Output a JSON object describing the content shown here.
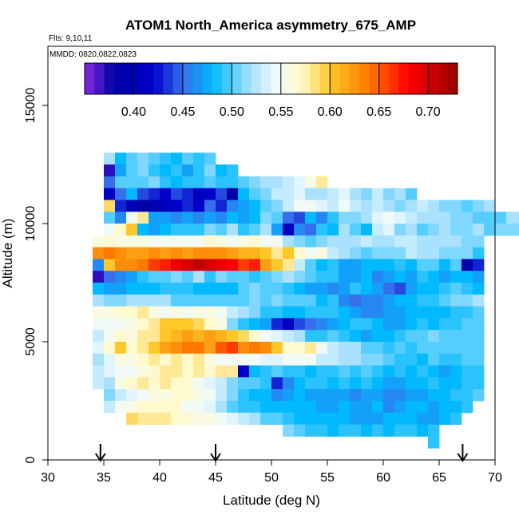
{
  "chart_data": {
    "type": "heatmap",
    "title": "ATOM1 North_America asymmetry_675_AMP",
    "flights_label": "Flts: 9,10,11",
    "dates_label": "MMDD: 0820,0822,0823",
    "xlabel": "Latitude (deg N)",
    "ylabel": "Altitude (m)",
    "xlim": [
      30,
      70
    ],
    "ylim": [
      0,
      17500
    ],
    "x_ticks": [
      30,
      35,
      40,
      45,
      50,
      55,
      60,
      65,
      70
    ],
    "y_ticks": [
      0,
      5000,
      10000,
      15000
    ],
    "colorbar": {
      "range": [
        0.35,
        0.73
      ],
      "ticks": [
        0.4,
        0.45,
        0.5,
        0.55,
        0.6,
        0.65,
        0.7
      ],
      "tick_labels": [
        "0.40",
        "0.45",
        "0.50",
        "0.55",
        "0.60",
        "0.65",
        "0.70"
      ]
    },
    "flight_arrows_lat": [
      34.7,
      45.0,
      67.1
    ],
    "cell_width_deg": 1.0,
    "cell_height_m": 500,
    "rows": [
      {
        "alt": 12500,
        "lat_start": 35,
        "values": [
          0.52,
          0.48,
          0.5,
          0.51,
          0.5,
          0.49,
          0.48,
          0.5,
          0.49,
          0.5
        ]
      },
      {
        "alt": 12000,
        "lat_start": 35,
        "values": [
          0.37,
          0.47,
          0.5,
          0.51,
          0.49,
          0.48,
          0.49,
          0.47,
          0.49,
          0.51,
          0.48,
          0.49
        ]
      },
      {
        "alt": 11500,
        "lat_start": 35,
        "values": [
          0.45,
          0.5,
          0.5,
          0.5,
          0.51,
          0.49,
          0.48,
          0.49,
          0.49,
          0.5,
          0.49,
          0.49,
          0.5,
          0.51,
          0.52,
          0.52,
          0.53,
          0.54,
          0.56,
          0.58
        ]
      },
      {
        "alt": 11000,
        "lat_start": 35,
        "values": [
          0.42,
          0.45,
          0.48,
          0.44,
          0.43,
          0.42,
          0.44,
          0.43,
          0.41,
          0.42,
          0.44,
          0.38,
          0.48,
          0.5,
          0.51,
          0.53,
          0.53,
          0.54,
          0.52,
          0.52,
          0.53,
          0.54,
          0.52,
          0.51,
          0.53,
          0.51,
          0.52,
          0.5
        ]
      },
      {
        "alt": 10500,
        "lat_start": 35,
        "values": [
          0.59,
          0.43,
          0.4,
          0.38,
          0.39,
          0.41,
          0.42,
          0.43,
          0.42,
          0.45,
          0.43,
          0.46,
          0.47,
          0.48,
          0.5,
          0.51,
          0.53,
          0.55,
          0.55,
          0.54,
          0.53,
          0.55,
          0.53,
          0.52,
          0.53,
          0.52,
          0.51,
          0.52,
          0.53,
          0.52,
          0.51,
          0.51,
          0.5,
          0.51,
          0.52
        ]
      },
      {
        "alt": 10000,
        "lat_start": 35,
        "values": [
          0.5,
          0.46,
          0.55,
          0.58,
          0.47,
          0.47,
          0.46,
          0.47,
          0.46,
          0.47,
          0.46,
          0.48,
          0.47,
          0.48,
          0.51,
          0.5,
          0.45,
          0.44,
          0.48,
          0.46,
          0.49,
          0.51,
          0.51,
          0.52,
          0.54,
          0.55,
          0.54,
          0.53,
          0.52,
          0.52,
          0.52,
          0.51,
          0.51,
          0.5,
          0.5,
          0.5,
          0.52,
          0.52
        ]
      },
      {
        "alt": 9500,
        "lat_start": 35,
        "values": [
          0.55,
          0.57,
          0.6,
          0.48,
          0.47,
          0.48,
          0.49,
          0.49,
          0.49,
          0.51,
          0.5,
          0.52,
          0.49,
          0.5,
          0.52,
          0.47,
          0.41,
          0.46,
          0.45,
          0.49,
          0.48,
          0.52,
          0.5,
          0.48,
          0.53,
          0.54,
          0.51,
          0.52,
          0.5,
          0.51,
          0.52,
          0.51,
          0.51,
          0.52,
          0.5,
          0.51,
          0.51,
          0.51,
          0.52,
          0.52
        ]
      },
      {
        "alt": 9000,
        "lat_start": 34,
        "values": [
          0.56,
          0.57,
          0.56,
          0.56,
          0.56,
          0.55,
          0.55,
          0.55,
          0.55,
          0.55,
          0.57,
          0.56,
          0.55,
          0.56,
          0.57,
          0.55,
          0.55,
          0.52,
          0.51,
          0.5,
          0.51,
          0.52,
          0.52,
          0.52,
          0.53,
          0.52,
          0.52,
          0.53,
          0.53,
          0.52,
          0.52,
          0.52,
          0.52,
          0.51,
          0.51
        ]
      },
      {
        "alt": 8500,
        "lat_start": 34,
        "values": [
          0.63,
          0.64,
          0.63,
          0.62,
          0.62,
          0.63,
          0.62,
          0.63,
          0.62,
          0.63,
          0.63,
          0.63,
          0.62,
          0.61,
          0.61,
          0.6,
          0.58,
          0.6,
          0.57,
          0.55,
          0.56,
          0.53,
          0.52,
          0.51,
          0.5,
          0.51,
          0.51,
          0.51,
          0.53,
          0.52,
          0.52,
          0.51,
          0.51,
          0.51,
          0.49
        ]
      },
      {
        "alt": 8000,
        "lat_start": 34,
        "values": [
          0.46,
          0.6,
          0.63,
          0.63,
          0.64,
          0.66,
          0.67,
          0.69,
          0.7,
          0.71,
          0.7,
          0.69,
          0.68,
          0.66,
          0.67,
          0.62,
          0.6,
          0.58,
          0.53,
          0.5,
          0.48,
          0.49,
          0.47,
          0.47,
          0.48,
          0.48,
          0.48,
          0.49,
          0.48,
          0.5,
          0.5,
          0.48,
          0.5,
          0.39,
          0.43
        ]
      },
      {
        "alt": 7500,
        "lat_start": 34,
        "values": [
          0.37,
          0.45,
          0.46,
          0.47,
          0.49,
          0.5,
          0.5,
          0.51,
          0.5,
          0.52,
          0.49,
          0.51,
          0.5,
          0.5,
          0.49,
          0.5,
          0.51,
          0.52,
          0.51,
          0.5,
          0.49,
          0.49,
          0.47,
          0.47,
          0.48,
          0.46,
          0.47,
          0.48,
          0.47,
          0.49,
          0.48,
          0.47,
          0.48,
          0.48,
          0.47
        ]
      },
      {
        "alt": 7000,
        "lat_start": 34,
        "values": [
          0.48,
          0.47,
          0.47,
          0.48,
          0.48,
          0.48,
          0.49,
          0.49,
          0.49,
          0.48,
          0.48,
          0.48,
          0.48,
          0.5,
          0.51,
          0.5,
          0.5,
          0.49,
          0.48,
          0.47,
          0.47,
          0.46,
          0.47,
          0.49,
          0.48,
          0.47,
          0.45,
          0.44,
          0.47,
          0.48,
          0.48,
          0.49,
          0.5,
          0.49,
          0.48
        ]
      },
      {
        "alt": 6500,
        "lat_start": 34,
        "values": [
          0.52,
          0.51,
          0.51,
          0.52,
          0.52,
          0.52,
          0.52,
          0.5,
          0.5,
          0.5,
          0.5,
          0.5,
          0.5,
          0.5,
          0.51,
          0.5,
          0.51,
          0.5,
          0.5,
          0.5,
          0.48,
          0.49,
          0.46,
          0.45,
          0.46,
          0.46,
          0.47,
          0.48,
          0.48,
          0.49,
          0.49,
          0.5,
          0.51,
          0.51,
          0.52
        ]
      },
      {
        "alt": 6000,
        "lat_start": 34,
        "values": [
          0.56,
          0.56,
          0.57,
          0.57,
          0.58,
          0.56,
          0.55,
          0.56,
          0.55,
          0.56,
          0.56,
          0.55,
          0.53,
          0.52,
          0.51,
          0.49,
          0.49,
          0.48,
          0.48,
          0.49,
          0.49,
          0.49,
          0.48,
          0.47,
          0.46,
          0.46,
          0.47,
          0.47,
          0.48,
          0.48,
          0.48,
          0.48,
          0.49,
          0.49,
          0.5
        ]
      },
      {
        "alt": 5500,
        "lat_start": 34,
        "values": [
          0.55,
          0.55,
          0.55,
          0.56,
          0.57,
          0.58,
          0.6,
          0.6,
          0.6,
          0.59,
          0.57,
          0.56,
          0.51,
          0.49,
          0.48,
          0.47,
          0.43,
          0.41,
          0.44,
          0.45,
          0.46,
          0.47,
          0.48,
          0.49,
          0.49,
          0.48,
          0.47,
          0.47,
          0.48,
          0.49,
          0.48,
          0.49,
          0.49,
          0.5,
          0.5
        ]
      },
      {
        "alt": 5000,
        "lat_start": 34,
        "values": [
          0.53,
          0.55,
          0.57,
          0.56,
          0.58,
          0.58,
          0.6,
          0.61,
          0.62,
          0.61,
          0.62,
          0.61,
          0.6,
          0.59,
          0.57,
          0.55,
          0.54,
          0.53,
          0.52,
          0.49,
          0.49,
          0.5,
          0.49,
          0.48,
          0.47,
          0.48,
          0.48,
          0.49,
          0.5,
          0.5,
          0.51,
          0.5,
          0.5,
          0.5,
          0.5
        ]
      },
      {
        "alt": 4500,
        "lat_start": 34,
        "values": [
          0.54,
          0.57,
          0.6,
          0.57,
          0.58,
          0.6,
          0.62,
          0.63,
          0.64,
          0.64,
          0.62,
          0.65,
          0.66,
          0.63,
          0.64,
          0.63,
          0.6,
          0.57,
          0.57,
          0.58,
          0.55,
          0.53,
          0.52,
          0.52,
          0.5,
          0.5,
          0.49,
          0.5,
          0.49,
          0.5,
          0.5,
          0.5,
          0.5,
          0.5,
          0.5
        ]
      },
      {
        "alt": 4000,
        "lat_start": 34,
        "values": [
          0.52,
          0.54,
          0.56,
          0.56,
          0.57,
          0.58,
          0.57,
          0.58,
          0.57,
          0.58,
          0.56,
          0.55,
          0.55,
          0.55,
          0.55,
          0.54,
          0.54,
          0.55,
          0.55,
          0.55,
          0.53,
          0.53,
          0.52,
          0.52,
          0.51,
          0.51,
          0.5,
          0.49,
          0.49,
          0.48,
          0.5,
          0.49,
          0.49,
          0.5,
          0.5
        ]
      },
      {
        "alt": 3500,
        "lat_start": 34,
        "values": [
          0.53,
          0.54,
          0.55,
          0.55,
          0.56,
          0.57,
          0.58,
          0.58,
          0.57,
          0.58,
          0.57,
          0.58,
          0.58,
          0.42,
          0.48,
          0.49,
          0.5,
          0.49,
          0.49,
          0.48,
          0.49,
          0.49,
          0.5,
          0.49,
          0.5,
          0.49,
          0.48,
          0.49,
          0.48,
          0.49,
          0.48,
          0.47,
          0.48,
          0.49,
          0.49
        ]
      },
      {
        "alt": 3000,
        "lat_start": 34,
        "values": [
          0.53,
          0.52,
          0.56,
          0.57,
          0.58,
          0.57,
          0.58,
          0.57,
          0.57,
          0.55,
          0.54,
          0.53,
          0.51,
          0.5,
          0.5,
          0.49,
          0.43,
          0.46,
          0.48,
          0.49,
          0.49,
          0.48,
          0.49,
          0.48,
          0.49,
          0.48,
          0.47,
          0.47,
          0.48,
          0.48,
          0.49,
          0.48,
          0.48,
          0.49,
          0.49
        ]
      },
      {
        "alt": 2500,
        "lat_start": 35,
        "values": [
          0.51,
          0.53,
          0.54,
          0.55,
          0.56,
          0.56,
          0.57,
          0.57,
          0.56,
          0.55,
          0.53,
          0.51,
          0.49,
          0.48,
          0.48,
          0.46,
          0.47,
          0.48,
          0.47,
          0.47,
          0.47,
          0.47,
          0.46,
          0.47,
          0.47,
          0.46,
          0.46,
          0.47,
          0.47,
          0.48,
          0.48,
          0.49,
          0.49,
          0.5
        ]
      },
      {
        "alt": 2000,
        "lat_start": 35,
        "values": [
          0.53,
          0.55,
          0.56,
          0.57,
          0.57,
          0.57,
          0.57,
          0.55,
          0.55,
          0.54,
          0.52,
          0.5,
          0.49,
          0.49,
          0.48,
          0.48,
          0.48,
          0.48,
          0.48,
          0.47,
          0.47,
          0.48,
          0.47,
          0.47,
          0.48,
          0.46,
          0.47,
          0.48,
          0.48,
          0.47,
          0.48,
          0.48,
          0.49
        ]
      },
      {
        "alt": 1500,
        "lat_start": 37,
        "values": [
          0.59,
          0.58,
          0.58,
          0.58,
          0.57,
          0.57,
          0.56,
          0.56,
          0.55,
          0.54,
          0.53,
          0.52,
          0.5,
          0.5,
          0.49,
          0.48,
          0.48,
          0.48,
          0.48,
          0.48,
          0.47,
          0.47,
          0.47,
          0.48,
          0.48,
          0.48,
          0.47,
          0.47,
          0.48,
          0.49
        ]
      },
      {
        "alt": 1000,
        "lat_start": 51,
        "values": [
          0.51,
          0.5,
          0.49,
          0.49,
          0.48,
          0.49,
          0.49,
          0.48,
          0.49,
          0.48,
          0.49,
          0.49,
          0.48,
          0.49
        ]
      },
      {
        "alt": 500,
        "lat_start": 64,
        "values": [
          0.49
        ]
      }
    ]
  }
}
